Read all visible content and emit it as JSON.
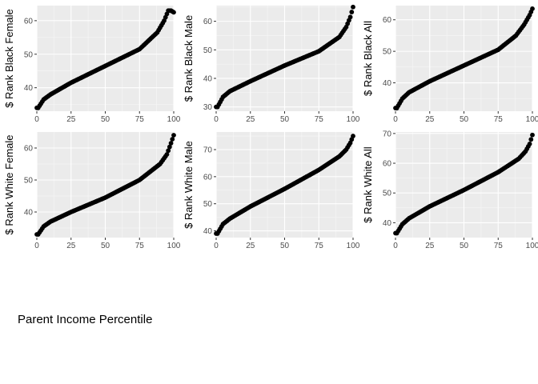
{
  "x_caption": "Parent Income Percentile",
  "chart_data": [
    {
      "type": "scatter",
      "ylabel": "$ Rank Black Female",
      "xlim": [
        0,
        100
      ],
      "ylim": [
        33,
        64.5
      ],
      "x_ticks": [
        0,
        25,
        50,
        75,
        100
      ],
      "y_ticks": [
        40,
        50,
        60
      ],
      "curve_x": [
        1,
        5,
        10,
        25,
        50,
        75,
        88,
        93,
        96,
        98,
        100
      ],
      "curve_y": [
        34,
        36.5,
        38,
        41.5,
        46.5,
        51.5,
        56.5,
        60,
        63,
        63,
        62.5
      ],
      "grid": true,
      "background": "#ebebeb",
      "point_color": "#000000"
    },
    {
      "type": "scatter",
      "ylabel": "$ Rank Black Male",
      "xlim": [
        0,
        100
      ],
      "ylim": [
        28.5,
        65.5
      ],
      "x_ticks": [
        0,
        25,
        50,
        75,
        100
      ],
      "y_ticks": [
        30,
        40,
        50,
        60
      ],
      "curve_x": [
        1,
        5,
        10,
        25,
        50,
        75,
        90,
        95,
        98,
        100
      ],
      "curve_y": [
        30,
        33.5,
        35.5,
        39,
        44.5,
        49.5,
        54.5,
        58,
        61.5,
        65
      ],
      "grid": true,
      "background": "#ebebeb",
      "point_color": "#000000"
    },
    {
      "type": "scatter",
      "ylabel": "$ Rank Black All",
      "xlim": [
        0,
        100
      ],
      "ylim": [
        31,
        64.5
      ],
      "x_ticks": [
        0,
        25,
        50,
        75,
        100
      ],
      "y_ticks": [
        40,
        50,
        60
      ],
      "curve_x": [
        1,
        5,
        10,
        25,
        50,
        75,
        88,
        94,
        98,
        100
      ],
      "curve_y": [
        32,
        35,
        37,
        40.5,
        45.5,
        50.5,
        55,
        58.5,
        61.5,
        63.5
      ],
      "grid": true,
      "background": "#ebebeb",
      "point_color": "#000000"
    },
    {
      "type": "scatter",
      "ylabel": "$ Rank White Female",
      "xlim": [
        0,
        100
      ],
      "ylim": [
        32,
        65
      ],
      "x_ticks": [
        0,
        25,
        50,
        75,
        100
      ],
      "y_ticks": [
        40,
        50,
        60
      ],
      "curve_x": [
        1,
        5,
        10,
        25,
        50,
        75,
        90,
        95,
        98,
        100
      ],
      "curve_y": [
        33,
        35.5,
        37,
        40,
        44.5,
        50,
        55,
        58,
        61.5,
        64
      ],
      "grid": true,
      "background": "#ebebeb",
      "point_color": "#000000"
    },
    {
      "type": "scatter",
      "ylabel": "$ Rank White Male",
      "xlim": [
        0,
        100
      ],
      "ylim": [
        37.5,
        76.5
      ],
      "x_ticks": [
        0,
        25,
        50,
        75,
        100
      ],
      "y_ticks": [
        40,
        50,
        60,
        70
      ],
      "curve_x": [
        1,
        5,
        10,
        25,
        50,
        75,
        90,
        95,
        98,
        100
      ],
      "curve_y": [
        39,
        42.5,
        44.5,
        49,
        55.5,
        62.5,
        67.5,
        70,
        72.5,
        75
      ],
      "grid": true,
      "background": "#ebebeb",
      "point_color": "#000000"
    },
    {
      "type": "scatter",
      "ylabel": "$ Rank White All",
      "xlim": [
        0,
        100
      ],
      "ylim": [
        35,
        70.5
      ],
      "x_ticks": [
        0,
        25,
        50,
        75,
        100
      ],
      "y_ticks": [
        40,
        50,
        60,
        70
      ],
      "curve_x": [
        1,
        5,
        10,
        25,
        50,
        75,
        90,
        95,
        98,
        100
      ],
      "curve_y": [
        36.5,
        39.5,
        41.5,
        45.5,
        51,
        57,
        61.5,
        64,
        66.5,
        69.5
      ],
      "grid": true,
      "background": "#ebebeb",
      "point_color": "#000000"
    }
  ]
}
